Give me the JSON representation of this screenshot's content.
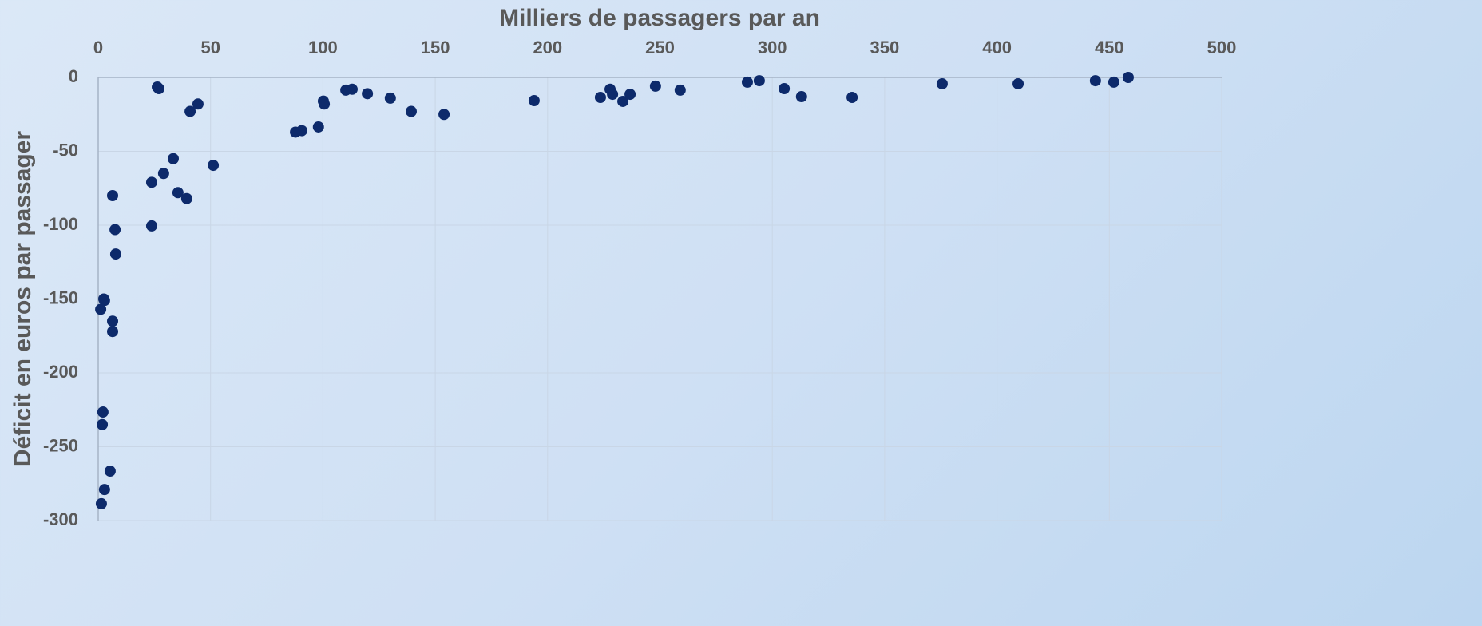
{
  "chart_data": {
    "type": "scatter",
    "x_label": "Milliers de passagers par an",
    "y_label": "Déficit en euros par passager",
    "color": "#0d2a6b",
    "grid": true,
    "xlim": [
      0,
      500
    ],
    "xticks": [
      0,
      50,
      100,
      150,
      200,
      250,
      300,
      350,
      400,
      450,
      500
    ],
    "ylim": [
      -300,
      0
    ],
    "yticks": [
      0,
      -50,
      -100,
      -150,
      -200,
      -250,
      -300
    ],
    "x": [
      26.3,
      27,
      40.9,
      44.4,
      100.2,
      100.6,
      110.2,
      113,
      119.8,
      130,
      139.3,
      153.9,
      194,
      87.8,
      90.6,
      98,
      33.4,
      51.2,
      29.1,
      23.8,
      35.5,
      39.4,
      6.4,
      7.5,
      7.8,
      23.8,
      2.5,
      2.8,
      1.1,
      6.4,
      6.4,
      2.1,
      1.8,
      5.3,
      2.8,
      1.4,
      223.5,
      227.8,
      228.9,
      233.5,
      236.7,
      248,
      259,
      288.9,
      294.2,
      305.3,
      313,
      335.5,
      375.6,
      409.4,
      443.8,
      452,
      458.4
    ],
    "y": [
      -6.5,
      -7.6,
      -23,
      -18,
      -16,
      -18,
      -8.6,
      -8,
      -11,
      -14,
      -23,
      -25,
      -15.7,
      -37,
      -36,
      -33.5,
      -55,
      -59.5,
      -65,
      -71,
      -78,
      -82,
      -80,
      -103,
      -119.5,
      -100.5,
      -150,
      -151,
      -157,
      -165,
      -172,
      -226.5,
      -235,
      -266.5,
      -279,
      -288.6,
      -13.5,
      -8,
      -11.4,
      -16.2,
      -11.4,
      -5.9,
      -8.6,
      -3.2,
      -2.2,
      -7.6,
      -13,
      -13.5,
      -4.3,
      -4.3,
      -2.2,
      -3.2,
      0
    ]
  }
}
